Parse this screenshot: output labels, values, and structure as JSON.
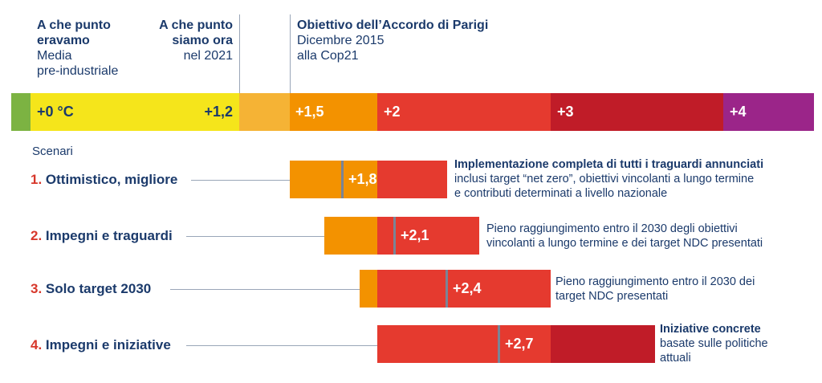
{
  "header": {
    "col1": {
      "line1": "A che punto",
      "line2": "eravamo",
      "line3": "Media",
      "line4": "pre-industriale"
    },
    "col2": {
      "line1": "A che punto",
      "line2": "siamo ora",
      "line3": "nel 2021"
    },
    "col3": {
      "line1": "Obiettivo dell’Accordo di Parigi",
      "line2": "Dicembre 2015",
      "line3": "alla Cop21"
    }
  },
  "scale": {
    "labels": [
      "+0 °C",
      "+1,2",
      "+1,5",
      "+2",
      "+3",
      "+4"
    ],
    "colors": {
      "green": "#7cb342",
      "yellow": "#f5e51b",
      "light_orange": "#f5b335",
      "orange": "#f39200",
      "red": "#e53a2f",
      "dark_red": "#c01c28",
      "purple": "#9b2589"
    }
  },
  "scenari_title": "Scenari",
  "scenarios": [
    {
      "num": "1.",
      "label": "Ottimistico, migliore",
      "value": "+1,8",
      "temp": 1.8,
      "desc_bold": "Implementazione completa di tutti i traguardi annunciati",
      "desc_lines": [
        "inclusi target “net zero”, obiettivi vincolanti a lungo termine",
        "e contributi determinati a livello nazionale"
      ]
    },
    {
      "num": "2.",
      "label": "Impegni e traguardi",
      "value": "+2,1",
      "temp": 2.1,
      "desc_bold": "",
      "desc_lines": [
        "Pieno raggiungimento entro il 2030 degli obiettivi",
        "vincolanti a lungo termine e dei target NDC presentati"
      ]
    },
    {
      "num": "3.",
      "label": "Solo target 2030",
      "value": "+2,4",
      "temp": 2.4,
      "desc_bold": "",
      "desc_lines": [
        "Pieno raggiungimento entro il 2030 dei",
        "target NDC presentati"
      ]
    },
    {
      "num": "4.",
      "label": "Impegni e iniziative",
      "value": "+2,7",
      "temp": 2.7,
      "desc_bold": "Iniziative concrete",
      "desc_lines": [
        "basate sulle politiche",
        "attuali"
      ]
    }
  ]
}
